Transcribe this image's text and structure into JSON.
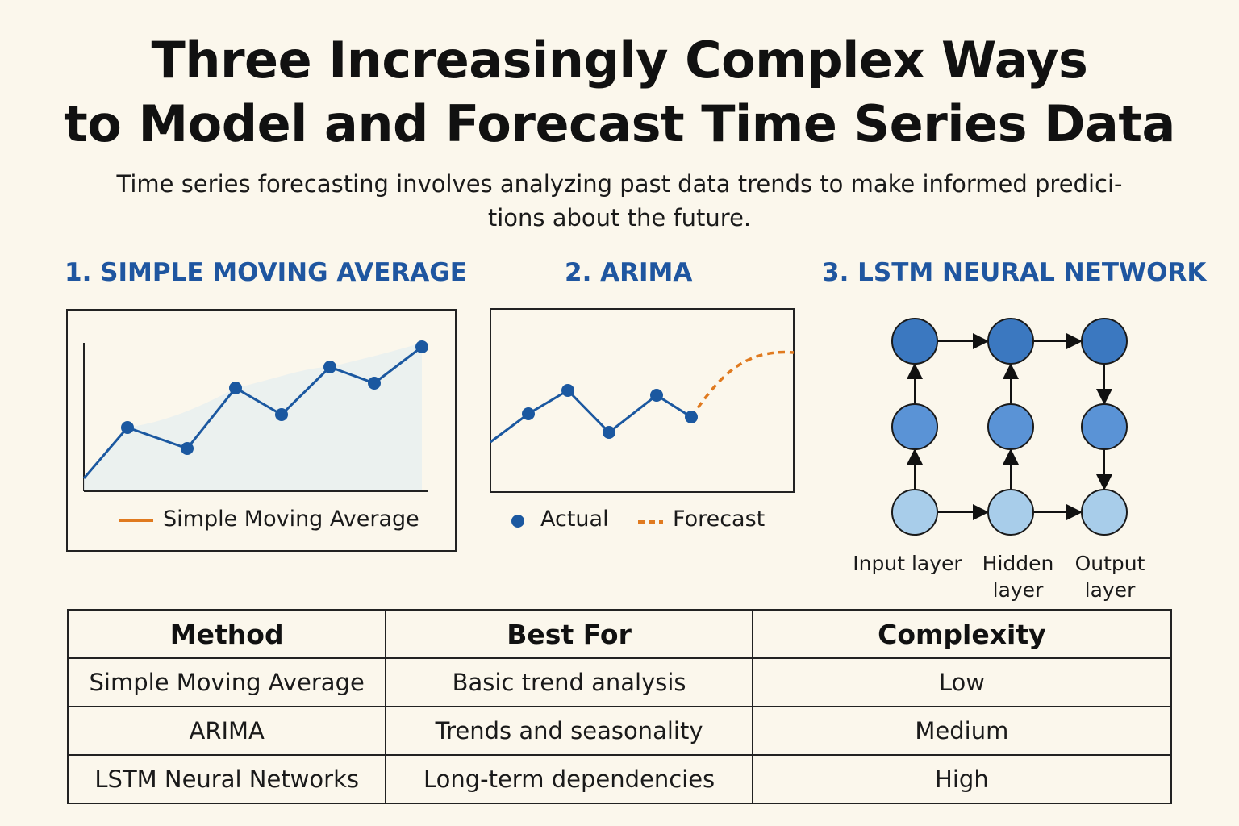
{
  "header": {
    "title_line1": "Three Increasingly Complex Ways",
    "title_line2": "to Model and Forecast Time Series Data",
    "subtitle_line1": "Time series forecasting involves analyzing past data trends to make informed predici-",
    "subtitle_line2": "tions about the future."
  },
  "sections": [
    {
      "heading": "1. SIMPLE MOVING AVERAGE",
      "legend": [
        "Simple Moving Average"
      ]
    },
    {
      "heading": "2. ARIMA",
      "legend": [
        "Actual",
        "Forecast"
      ]
    },
    {
      "heading": "3. LSTM NEURAL NETWORK",
      "layers": [
        "Input layer",
        "Hidden",
        "layer",
        "Output",
        "layer"
      ]
    }
  ],
  "colors": {
    "background": "#fbf7ec",
    "heading_blue": "#1f56a0",
    "series_blue": "#1b58a0",
    "forecast_orange": "#e07a1f",
    "node_top": "#3b78c0",
    "node_mid": "#5a93d6",
    "node_bottom": "#a8cdea"
  },
  "table": {
    "headers": [
      "Method",
      "Best For",
      "Complexity"
    ],
    "rows": [
      [
        "Simple Moving Average",
        "Basic trend analysis",
        "Low"
      ],
      [
        "ARIMA",
        "Trends and seasonality",
        "Medium"
      ],
      [
        "LSTM Neural Networks",
        "Long-term dependencies",
        "High"
      ]
    ]
  }
}
